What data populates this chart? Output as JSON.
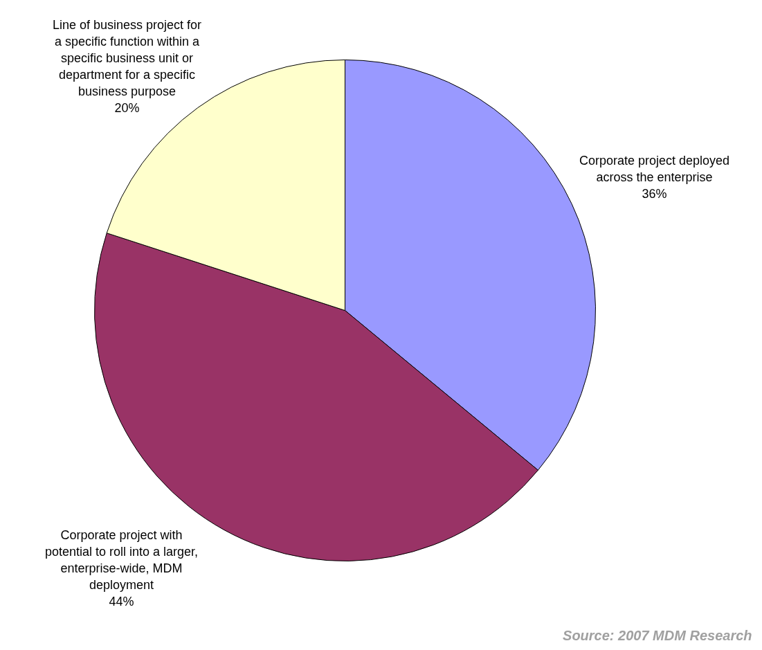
{
  "chart_data": {
    "type": "pie",
    "categories": [
      "Corporate project deployed\nacross the enterprise",
      "Corporate project with\npotential to roll into a larger,\nenterprise-wide, MDM\ndeployment",
      "Line of business project for\na specific function within a\nspecific business unit or\ndepartment for a specific\nbusiness purpose"
    ],
    "values": [
      36,
      44,
      20
    ],
    "value_labels": [
      "36%",
      "44%",
      "20%"
    ],
    "colors": [
      "#9999ff",
      "#993366",
      "#ffffcc"
    ],
    "annotations": [
      "Source: 2007 MDM Research"
    ]
  }
}
